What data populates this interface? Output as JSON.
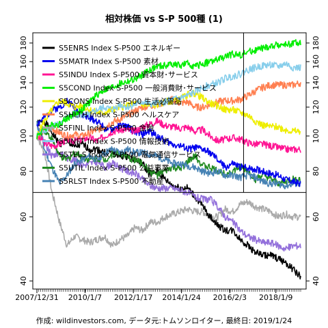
{
  "chart_data": {
    "type": "line",
    "title": "相対株価 vs S-P 500種 (1)",
    "caption": "作成: wildinvestors.com, データ元:トムソンロイター, 最終日: 2019/1/24",
    "x_tick_labels": [
      "2007/12/31",
      "2010/1/7",
      "2012/1/17",
      "2014/1/24",
      "2016/2/3",
      "2018/1/9"
    ],
    "y_ticks": [
      40,
      60,
      80,
      100,
      120,
      140,
      160,
      180
    ],
    "ylim": [
      38,
      192
    ],
    "y_scale": "log",
    "grid": false,
    "legend_position": "top-left",
    "x_range": [
      "2007/12/31",
      "2019/1/24"
    ],
    "reference_level": 70,
    "reference_date": "2016/9/1",
    "gray_baseline_color": "#aaaaaa",
    "series": [
      {
        "name": "S5ENRS Index S-P500 エネルギー",
        "color": "#000000",
        "values": [
          108,
          110,
          102,
          95,
          97,
          93,
          95,
          92,
          92,
          90,
          91,
          88,
          88,
          86,
          84,
          78,
          80,
          76,
          73,
          72,
          72,
          68,
          64,
          60,
          57,
          55,
          55,
          52,
          50,
          48,
          47,
          47,
          46,
          45,
          43,
          41
        ]
      },
      {
        "name": "S5MATR Index S-P500 素材",
        "color": "#0000ee",
        "values": [
          108,
          112,
          118,
          120,
          125,
          120,
          114,
          112,
          110,
          105,
          104,
          107,
          106,
          103,
          101,
          103,
          100,
          97,
          95,
          94,
          92,
          93,
          92,
          90,
          86,
          82,
          84,
          82,
          82,
          81,
          80,
          79,
          78,
          76,
          75,
          74
        ]
      },
      {
        "name": "S5INDU Index S-P500 資本財･サービス",
        "color": "#ff1493",
        "values": [
          100,
          96,
          94,
          95,
          98,
          97,
          98,
          99,
          97,
          100,
          103,
          104,
          104,
          103,
          106,
          108,
          110,
          107,
          106,
          105,
          106,
          103,
          104,
          100,
          97,
          98,
          99,
          98,
          96,
          95,
          95,
          94,
          93,
          92,
          92,
          92
        ]
      },
      {
        "name": "S5COND Index S-P500 一般消費財･サービス",
        "color": "#00ee00",
        "values": [
          100,
          105,
          107,
          108,
          112,
          115,
          118,
          124,
          130,
          134,
          136,
          139,
          141,
          143,
          147,
          152,
          155,
          156,
          158,
          156,
          158,
          155,
          158,
          160,
          162,
          165,
          168,
          167,
          170,
          172,
          174,
          176,
          178,
          178,
          180,
          180
        ]
      },
      {
        "name": "S5CONS Index S-P500 生活必需品",
        "color": "#eeee00",
        "values": [
          100,
          110,
          118,
          125,
          123,
          120,
          121,
          118,
          116,
          116,
          118,
          120,
          121,
          123,
          122,
          121,
          122,
          124,
          125,
          126,
          130,
          131,
          127,
          123,
          121,
          118,
          118,
          116,
          114,
          110,
          107,
          106,
          106,
          104,
          103,
          103
        ]
      },
      {
        "name": "S5HLTH Index S-P500 ヘルスケア",
        "color": "#ff7f50",
        "values": [
          100,
          104,
          105,
          102,
          100,
          101,
          100,
          102,
          104,
          106,
          109,
          111,
          114,
          117,
          120,
          121,
          122,
          124,
          126,
          123,
          124,
          120,
          120,
          122,
          124,
          125,
          125,
          126,
          129,
          133,
          136,
          138,
          138,
          138,
          138,
          140
        ]
      },
      {
        "name": "S5FINL Index S-P500 金融",
        "color": "#aaaaaa",
        "values": [
          100,
          90,
          70,
          58,
          50,
          53,
          52,
          51,
          52,
          53,
          50,
          52,
          53,
          56,
          55,
          58,
          58,
          60,
          61,
          62,
          63,
          62,
          62,
          60,
          60,
          63,
          62,
          65,
          66,
          64,
          63,
          62,
          60,
          61,
          60,
          60
        ]
      },
      {
        "name": "S5INFT Index S-P500 情報技術",
        "color": "#87ceeb",
        "values": [
          100,
          104,
          106,
          108,
          112,
          115,
          114,
          114,
          118,
          120,
          118,
          122,
          120,
          122,
          124,
          122,
          123,
          124,
          126,
          127,
          129,
          132,
          136,
          138,
          140,
          144,
          146,
          148,
          152,
          154,
          156,
          157,
          155,
          158,
          154,
          154
        ]
      },
      {
        "name": "S5TELS Index S-P500 電気通信サービス",
        "color": "#9370db",
        "values": [
          108,
          95,
          88,
          90,
          87,
          86,
          83,
          84,
          85,
          82,
          84,
          82,
          80,
          79,
          76,
          73,
          72,
          72,
          72,
          71,
          70,
          68,
          67,
          67,
          64,
          60,
          58,
          55,
          53,
          52,
          51,
          51,
          50,
          49,
          50,
          50
        ]
      },
      {
        "name": "S5UTIL Index S-P500 公益事業",
        "color": "#228b22",
        "values": [
          100,
          104,
          98,
          88,
          86,
          90,
          88,
          86,
          87,
          86,
          89,
          90,
          87,
          86,
          84,
          80,
          78,
          80,
          82,
          81,
          85,
          88,
          83,
          82,
          80,
          79,
          80,
          82,
          80,
          76,
          78,
          76,
          74,
          75,
          76,
          76
        ]
      },
      {
        "name": "S5RLST Index S-P500 不動産",
        "color": "#4682b4",
        "values": [
          108,
          92,
          82,
          74,
          78,
          84,
          86,
          88,
          86,
          90,
          92,
          90,
          92,
          90,
          90,
          89,
          88,
          86,
          84,
          84,
          83,
          82,
          80,
          79,
          80,
          78,
          78,
          77,
          78,
          77,
          75,
          74,
          74,
          73,
          74,
          74
        ]
      }
    ]
  }
}
